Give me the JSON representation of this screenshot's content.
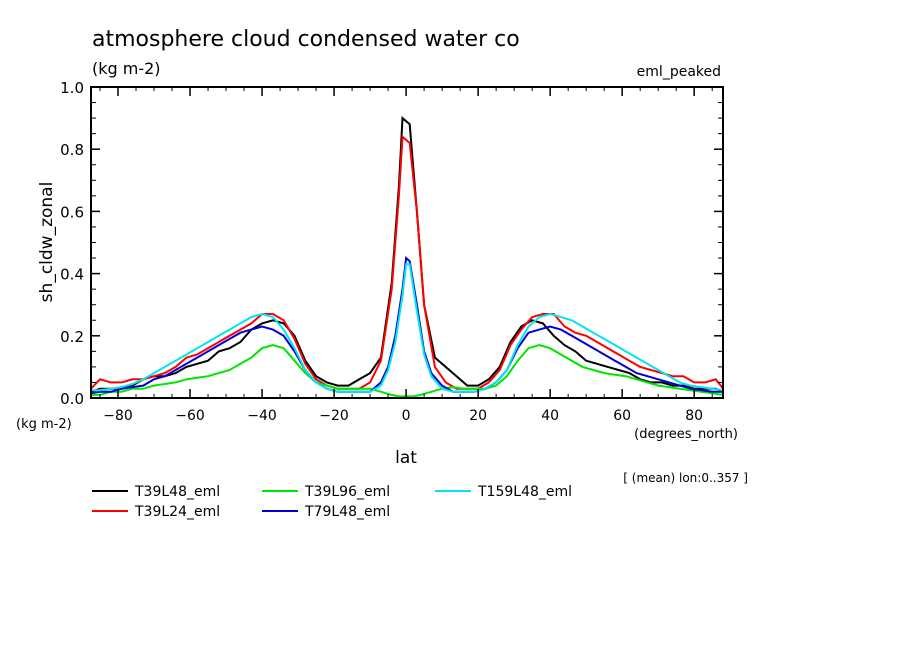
{
  "chart_data": {
    "type": "line",
    "title": "atmosphere cloud condensed water co",
    "subtitle_units": "(kg m-2)",
    "experiment_label": "eml_peaked",
    "ylabel": "sh_cldw_zonal",
    "ylabel_units": "(kg m-2)",
    "xlabel": "lat",
    "xlabel_units": "(degrees_north)",
    "averaging_note": "[ (mean) lon:0..357 ]",
    "xlim": [
      -87.5,
      88
    ],
    "ylim": [
      0.0,
      1.0
    ],
    "xticks": [
      -80,
      -60,
      -40,
      -20,
      0,
      20,
      40,
      60,
      80
    ],
    "xtick_labels": [
      "-80",
      "-60",
      "-40",
      "-20",
      "0",
      "20",
      "40",
      "60",
      "80"
    ],
    "yticks": [
      0.0,
      0.2,
      0.4,
      0.6,
      0.8,
      1.0
    ],
    "ytick_labels": [
      "0.0",
      "0.2",
      "0.4",
      "0.6",
      "0.8",
      "1.0"
    ],
    "grid": false,
    "legend_placement": "bottom",
    "series": [
      {
        "name": "T39L48_eml",
        "color": "#000000",
        "x": [
          -87.5,
          -85,
          -82,
          -79,
          -76,
          -73,
          -70,
          -67,
          -64,
          -61,
          -58,
          -55,
          -52,
          -49,
          -46,
          -43,
          -40,
          -37,
          -34,
          -31,
          -28,
          -25,
          -22,
          -19,
          -16,
          -13,
          -10,
          -7,
          -4,
          -2,
          -1,
          1,
          3,
          5,
          8,
          11,
          14,
          17,
          20,
          23,
          26,
          29,
          32,
          35,
          38,
          41,
          44,
          47,
          50,
          53,
          56,
          59,
          62,
          65,
          68,
          71,
          74,
          77,
          80,
          83,
          86,
          88
        ],
        "values": [
          0.02,
          0.03,
          0.03,
          0.03,
          0.04,
          0.06,
          0.07,
          0.07,
          0.08,
          0.1,
          0.11,
          0.12,
          0.15,
          0.16,
          0.18,
          0.22,
          0.24,
          0.25,
          0.24,
          0.2,
          0.12,
          0.07,
          0.05,
          0.04,
          0.04,
          0.06,
          0.08,
          0.13,
          0.37,
          0.68,
          0.9,
          0.88,
          0.6,
          0.3,
          0.13,
          0.1,
          0.07,
          0.04,
          0.04,
          0.06,
          0.1,
          0.18,
          0.23,
          0.25,
          0.24,
          0.2,
          0.17,
          0.15,
          0.12,
          0.11,
          0.1,
          0.09,
          0.08,
          0.06,
          0.05,
          0.05,
          0.04,
          0.04,
          0.03,
          0.03,
          0.03,
          0.02
        ]
      },
      {
        "name": "T39L24_eml",
        "color": "#ff0000",
        "x": [
          -87.5,
          -85,
          -82,
          -79,
          -76,
          -73,
          -70,
          -67,
          -64,
          -61,
          -58,
          -55,
          -52,
          -49,
          -46,
          -43,
          -40,
          -37,
          -34,
          -31,
          -28,
          -25,
          -22,
          -19,
          -16,
          -13,
          -10,
          -7,
          -4,
          -2,
          -1,
          1,
          3,
          5,
          8,
          11,
          14,
          17,
          20,
          23,
          26,
          29,
          32,
          35,
          38,
          41,
          44,
          47,
          50,
          53,
          56,
          59,
          62,
          65,
          68,
          71,
          74,
          77,
          80,
          83,
          86,
          88
        ],
        "values": [
          0.03,
          0.06,
          0.05,
          0.05,
          0.06,
          0.06,
          0.07,
          0.08,
          0.1,
          0.13,
          0.14,
          0.16,
          0.18,
          0.2,
          0.22,
          0.24,
          0.27,
          0.27,
          0.25,
          0.19,
          0.11,
          0.06,
          0.04,
          0.03,
          0.03,
          0.03,
          0.05,
          0.12,
          0.35,
          0.65,
          0.84,
          0.82,
          0.6,
          0.3,
          0.1,
          0.05,
          0.03,
          0.03,
          0.03,
          0.05,
          0.09,
          0.17,
          0.22,
          0.26,
          0.27,
          0.27,
          0.23,
          0.21,
          0.2,
          0.18,
          0.16,
          0.14,
          0.12,
          0.1,
          0.09,
          0.08,
          0.07,
          0.07,
          0.05,
          0.05,
          0.06,
          0.03
        ]
      },
      {
        "name": "T39L96_eml",
        "color": "#00e600",
        "x": [
          -87.5,
          -85,
          -82,
          -79,
          -76,
          -73,
          -70,
          -67,
          -64,
          -61,
          -58,
          -55,
          -52,
          -49,
          -46,
          -43,
          -40,
          -37,
          -34,
          -31,
          -28,
          -25,
          -22,
          -19,
          -16,
          -13,
          -10,
          -7,
          -4,
          -2,
          0,
          2,
          4,
          7,
          10,
          13,
          16,
          19,
          22,
          25,
          28,
          31,
          34,
          37,
          40,
          43,
          46,
          49,
          52,
          55,
          58,
          61,
          64,
          67,
          70,
          73,
          76,
          79,
          82,
          85,
          88
        ],
        "values": [
          0.01,
          0.01,
          0.02,
          0.02,
          0.03,
          0.03,
          0.04,
          0.045,
          0.05,
          0.06,
          0.065,
          0.07,
          0.08,
          0.09,
          0.11,
          0.13,
          0.16,
          0.17,
          0.16,
          0.12,
          0.08,
          0.05,
          0.04,
          0.03,
          0.03,
          0.03,
          0.03,
          0.02,
          0.01,
          0.005,
          0.005,
          0.005,
          0.01,
          0.02,
          0.03,
          0.035,
          0.03,
          0.03,
          0.03,
          0.04,
          0.07,
          0.12,
          0.16,
          0.17,
          0.16,
          0.14,
          0.12,
          0.1,
          0.09,
          0.08,
          0.075,
          0.07,
          0.06,
          0.05,
          0.04,
          0.035,
          0.03,
          0.025,
          0.02,
          0.015,
          0.01
        ]
      },
      {
        "name": "T79L48_eml",
        "color": "#0000d0",
        "x": [
          -87.5,
          -85,
          -82,
          -79,
          -76,
          -73,
          -70,
          -67,
          -64,
          -61,
          -58,
          -55,
          -52,
          -49,
          -46,
          -43,
          -40,
          -37,
          -34,
          -31,
          -28,
          -25,
          -22,
          -19,
          -16,
          -13,
          -10,
          -7,
          -5,
          -3,
          -1,
          0,
          1,
          3,
          5,
          7,
          10,
          13,
          16,
          19,
          22,
          25,
          28,
          31,
          34,
          37,
          40,
          43,
          46,
          49,
          52,
          55,
          58,
          61,
          64,
          67,
          70,
          73,
          76,
          79,
          82,
          85,
          88
        ],
        "values": [
          0.015,
          0.02,
          0.02,
          0.03,
          0.035,
          0.04,
          0.06,
          0.07,
          0.09,
          0.11,
          0.13,
          0.15,
          0.17,
          0.19,
          0.21,
          0.22,
          0.23,
          0.22,
          0.2,
          0.15,
          0.09,
          0.05,
          0.03,
          0.02,
          0.02,
          0.02,
          0.02,
          0.05,
          0.1,
          0.2,
          0.35,
          0.45,
          0.44,
          0.3,
          0.15,
          0.08,
          0.04,
          0.02,
          0.02,
          0.02,
          0.03,
          0.05,
          0.09,
          0.16,
          0.21,
          0.22,
          0.23,
          0.22,
          0.2,
          0.18,
          0.16,
          0.14,
          0.12,
          0.1,
          0.08,
          0.07,
          0.06,
          0.05,
          0.04,
          0.03,
          0.025,
          0.02,
          0.02
        ]
      },
      {
        "name": "T159L48_eml",
        "color": "#00e5ee",
        "x": [
          -87.5,
          -85,
          -82,
          -79,
          -76,
          -73,
          -70,
          -67,
          -64,
          -61,
          -58,
          -55,
          -52,
          -49,
          -46,
          -43,
          -40,
          -37,
          -34,
          -31,
          -28,
          -25,
          -22,
          -19,
          -16,
          -13,
          -10,
          -7,
          -5,
          -3,
          -1,
          0,
          1,
          3,
          5,
          7,
          10,
          13,
          16,
          19,
          22,
          25,
          28,
          31,
          34,
          37,
          40,
          43,
          46,
          49,
          52,
          55,
          58,
          61,
          64,
          67,
          70,
          73,
          76,
          79,
          82,
          85,
          88
        ],
        "values": [
          0.025,
          0.025,
          0.03,
          0.035,
          0.045,
          0.06,
          0.08,
          0.1,
          0.12,
          0.14,
          0.16,
          0.18,
          0.2,
          0.22,
          0.24,
          0.26,
          0.27,
          0.26,
          0.22,
          0.16,
          0.09,
          0.05,
          0.03,
          0.02,
          0.02,
          0.02,
          0.02,
          0.04,
          0.09,
          0.18,
          0.33,
          0.43,
          0.43,
          0.28,
          0.14,
          0.07,
          0.03,
          0.02,
          0.02,
          0.02,
          0.03,
          0.05,
          0.09,
          0.17,
          0.23,
          0.26,
          0.27,
          0.26,
          0.25,
          0.23,
          0.21,
          0.19,
          0.17,
          0.15,
          0.13,
          0.11,
          0.09,
          0.07,
          0.05,
          0.04,
          0.035,
          0.03,
          0.025
        ]
      }
    ]
  }
}
